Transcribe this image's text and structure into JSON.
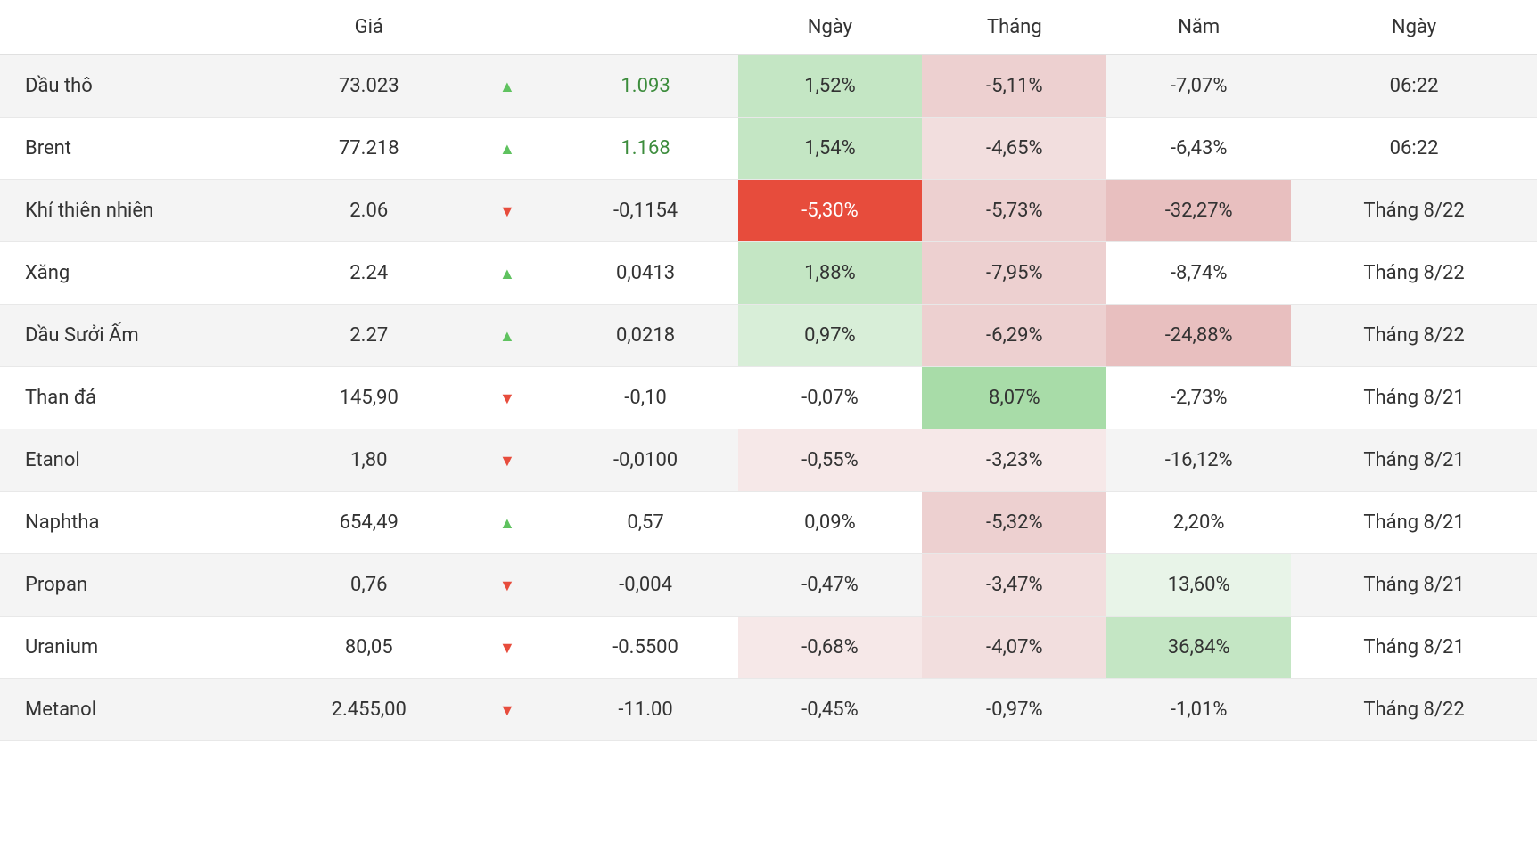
{
  "headers": [
    "",
    "Giá",
    "",
    "",
    "Ngày",
    "Tháng",
    "Năm",
    "Ngày"
  ],
  "colors": {
    "up_arrow": "#5fc25f",
    "down_arrow": "#e74c3c",
    "up_text": "#3c8c3c",
    "neutral_text": "#333333",
    "row_odd": "#f4f4f4",
    "row_even": "#ffffff",
    "heat_green_strong": "#a8dca8",
    "heat_green_mid": "#c4e6c4",
    "heat_green_light": "#d8eed8",
    "heat_green_vlight": "#e8f4e8",
    "heat_red_max": "#e74c3c",
    "heat_red_strong": "#e8bfbf",
    "heat_red_mid": "#edd0d0",
    "heat_red_light": "#f2dede",
    "heat_red_vlight": "#f6e8e8"
  },
  "rows": [
    {
      "name": "Dầu thô",
      "price": "73.023",
      "dir": "up",
      "change": "1.093",
      "change_color": "up",
      "day": "1,52%",
      "day_bg": "heat_green_mid",
      "month": "-5,11%",
      "month_bg": "heat_red_mid",
      "year": "-7,07%",
      "year_bg": null,
      "date": "06:22"
    },
    {
      "name": "Brent",
      "price": "77.218",
      "dir": "up",
      "change": "1.168",
      "change_color": "up",
      "day": "1,54%",
      "day_bg": "heat_green_mid",
      "month": "-4,65%",
      "month_bg": "heat_red_light",
      "year": "-6,43%",
      "year_bg": null,
      "date": "06:22"
    },
    {
      "name": "Khí thiên nhiên",
      "price": "2.06",
      "dir": "down",
      "change": "-0,1154",
      "change_color": "neutral",
      "day": "-5,30%",
      "day_bg": "heat_red_max",
      "day_text": "white",
      "month": "-5,73%",
      "month_bg": "heat_red_mid",
      "year": "-32,27%",
      "year_bg": "heat_red_strong",
      "date": "Tháng 8/22"
    },
    {
      "name": "Xăng",
      "price": "2.24",
      "dir": "up",
      "change": "0,0413",
      "change_color": "neutral",
      "day": "1,88%",
      "day_bg": "heat_green_mid",
      "month": "-7,95%",
      "month_bg": "heat_red_mid",
      "year": "-8,74%",
      "year_bg": null,
      "date": "Tháng 8/22"
    },
    {
      "name": "Dầu Sưởi Ấm",
      "price": "2.27",
      "dir": "up",
      "change": "0,0218",
      "change_color": "neutral",
      "day": "0,97%",
      "day_bg": "heat_green_light",
      "month": "-6,29%",
      "month_bg": "heat_red_mid",
      "year": "-24,88%",
      "year_bg": "heat_red_strong",
      "date": "Tháng 8/22"
    },
    {
      "name": "Than đá",
      "price": "145,90",
      "dir": "down",
      "change": "-0,10",
      "change_color": "neutral",
      "day": "-0,07%",
      "day_bg": null,
      "month": "8,07%",
      "month_bg": "heat_green_strong",
      "year": "-2,73%",
      "year_bg": null,
      "date": "Tháng 8/21"
    },
    {
      "name": "Etanol",
      "price": "1,80",
      "dir": "down",
      "change": "-0,0100",
      "change_color": "neutral",
      "day": "-0,55%",
      "day_bg": "heat_red_vlight",
      "month": "-3,23%",
      "month_bg": "heat_red_vlight",
      "year": "-16,12%",
      "year_bg": null,
      "date": "Tháng 8/21"
    },
    {
      "name": "Naphtha",
      "price": "654,49",
      "dir": "up",
      "change": "0,57",
      "change_color": "neutral",
      "day": "0,09%",
      "day_bg": null,
      "month": "-5,32%",
      "month_bg": "heat_red_mid",
      "year": "2,20%",
      "year_bg": null,
      "date": "Tháng 8/21"
    },
    {
      "name": "Propan",
      "price": "0,76",
      "dir": "down",
      "change": "-0,004",
      "change_color": "neutral",
      "day": "-0,47%",
      "day_bg": null,
      "month": "-3,47%",
      "month_bg": "heat_red_light",
      "year": "13,60%",
      "year_bg": "heat_green_vlight",
      "date": "Tháng 8/21"
    },
    {
      "name": "Uranium",
      "price": "80,05",
      "dir": "down",
      "change": "-0.5500",
      "change_color": "neutral",
      "day": "-0,68%",
      "day_bg": "heat_red_vlight",
      "month": "-4,07%",
      "month_bg": "heat_red_light",
      "year": "36,84%",
      "year_bg": "heat_green_mid",
      "date": "Tháng 8/21"
    },
    {
      "name": "Metanol",
      "price": "2.455,00",
      "dir": "down",
      "change": "-11.00",
      "change_color": "neutral",
      "day": "-0,45%",
      "day_bg": null,
      "month": "-0,97%",
      "month_bg": null,
      "year": "-1,01%",
      "year_bg": null,
      "date": "Tháng 8/22"
    }
  ]
}
